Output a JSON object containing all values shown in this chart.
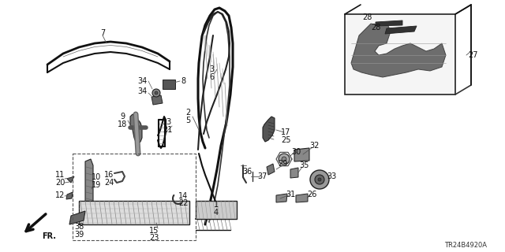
{
  "bg_color": "#ffffff",
  "line_color": "#111111",
  "diagram_code": "TR24B4920A",
  "fig_width": 6.4,
  "fig_height": 3.2,
  "dpi": 100
}
